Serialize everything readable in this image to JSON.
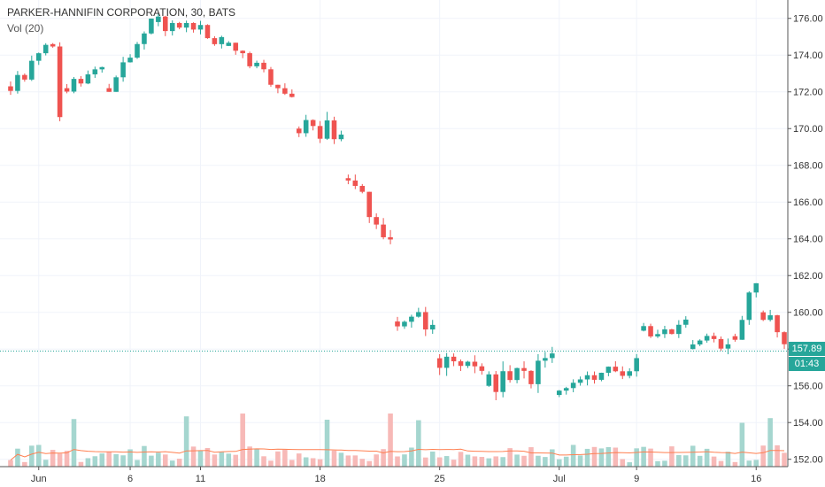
{
  "header": {
    "title": "PARKER-HANNIFIN CORPORATION, 30, BATS",
    "indicator": "Vol (20)"
  },
  "tags": {
    "last_price": "157.89",
    "countdown": "01:43"
  },
  "colors": {
    "up": "#26a69a",
    "down": "#ef5350",
    "up_volume": "#a5d6cf",
    "down_volume": "#f7b9b7",
    "volume_ma": "#ff7f50",
    "last_price_line": "#26a69a",
    "grid": "#f0f3fa"
  },
  "chart_data": {
    "type": "candlestick",
    "title": "PARKER-HANNIFIN CORPORATION, 30, BATS",
    "y_ticks": [
      "152.00",
      "154.00",
      "156.00",
      "158.00",
      "160.00",
      "162.00",
      "164.00",
      "166.00",
      "168.00",
      "170.00",
      "172.00",
      "174.00",
      "176.00"
    ],
    "ylim": [
      151.6,
      177.0
    ],
    "x_ticks": [
      "Jun",
      "6",
      "11",
      "18",
      "25",
      "Jul",
      "9",
      "16"
    ],
    "x_tick_index": [
      4,
      17,
      27,
      44,
      61,
      78,
      89,
      106
    ],
    "num_bars": 111,
    "last_price": 157.89,
    "grid": true,
    "segments": [
      {
        "x0": 0,
        "x1": 6,
        "o": 172.3,
        "c": 174.6,
        "lo": 171.2,
        "hi": 176.2,
        "vol": 0.35,
        "seed": 1
      },
      {
        "x0": 6,
        "x1": 8,
        "o": 174.6,
        "c": 170.7,
        "lo": 170.4,
        "hi": 175.0,
        "vol": 0.5,
        "seed": 2
      },
      {
        "x0": 8,
        "x1": 14,
        "o": 172.2,
        "c": 173.2,
        "lo": 171.8,
        "hi": 174.5,
        "vol": 0.3,
        "seed": 3
      },
      {
        "x0": 14,
        "x1": 21,
        "o": 172.2,
        "c": 175.8,
        "lo": 172.0,
        "hi": 176.0,
        "vol": 0.4,
        "seed": 4
      },
      {
        "x0": 21,
        "x1": 31,
        "o": 175.8,
        "c": 174.7,
        "lo": 174.3,
        "hi": 176.3,
        "vol": 0.35,
        "seed": 5
      },
      {
        "x0": 31,
        "x1": 41,
        "o": 174.5,
        "c": 171.8,
        "lo": 171.0,
        "hi": 174.8,
        "vol": 0.35,
        "seed": 6
      },
      {
        "x0": 41,
        "x1": 48,
        "o": 170.0,
        "c": 169.8,
        "lo": 168.3,
        "hi": 171.0,
        "vol": 0.6,
        "seed": 7
      },
      {
        "x0": 48,
        "x1": 55,
        "o": 167.3,
        "c": 164.0,
        "lo": 162.5,
        "hi": 167.5,
        "vol": 0.55,
        "seed": 8
      },
      {
        "x0": 55,
        "x1": 61,
        "o": 159.5,
        "c": 159.4,
        "lo": 157.8,
        "hi": 160.3,
        "vol": 0.45,
        "seed": 9
      },
      {
        "x0": 61,
        "x1": 68,
        "o": 157.5,
        "c": 156.8,
        "lo": 154.2,
        "hi": 157.8,
        "vol": 0.55,
        "seed": 10
      },
      {
        "x0": 68,
        "x1": 78,
        "o": 156.0,
        "c": 157.2,
        "lo": 152.8,
        "hi": 158.4,
        "vol": 0.7,
        "seed": 11
      },
      {
        "x0": 78,
        "x1": 90,
        "o": 155.5,
        "c": 157.2,
        "lo": 154.0,
        "hi": 158.0,
        "vol": 0.45,
        "seed": 12
      },
      {
        "x0": 90,
        "x1": 97,
        "o": 159.0,
        "c": 159.5,
        "lo": 158.6,
        "hi": 160.6,
        "vol": 0.4,
        "seed": 13
      },
      {
        "x0": 97,
        "x1": 103,
        "o": 158.0,
        "c": 158.5,
        "lo": 157.0,
        "hi": 159.3,
        "vol": 0.4,
        "seed": 14
      },
      {
        "x0": 103,
        "x1": 107,
        "o": 158.7,
        "c": 161.8,
        "lo": 158.4,
        "hi": 162.2,
        "vol": 0.35,
        "seed": 15
      },
      {
        "x0": 107,
        "x1": 111,
        "o": 160.0,
        "c": 157.9,
        "lo": 157.1,
        "hi": 160.5,
        "vol": 0.45,
        "seed": 16
      }
    ],
    "volume_ma": "line",
    "volume_scale": "bottom overlay"
  }
}
